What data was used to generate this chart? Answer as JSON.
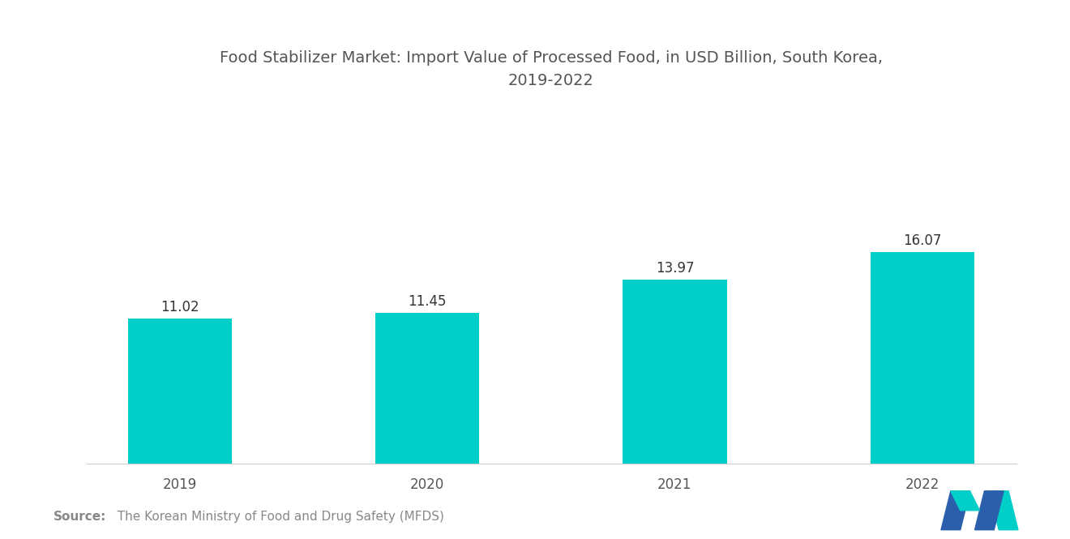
{
  "title": "Food Stabilizer Market: Import Value of Processed Food, in USD Billion, South Korea,\n2019-2022",
  "categories": [
    "2019",
    "2020",
    "2021",
    "2022"
  ],
  "values": [
    11.02,
    11.45,
    13.97,
    16.07
  ],
  "bar_color": "#00CEC9",
  "background_color": "#ffffff",
  "value_labels": [
    "11.02",
    "11.45",
    "13.97",
    "16.07"
  ],
  "source_bold": "Source:",
  "source_rest": "  The Korean Ministry of Food and Drug Safety (MFDS)",
  "ylim": [
    0,
    27
  ],
  "title_fontsize": 14,
  "label_fontsize": 12,
  "tick_fontsize": 12,
  "source_fontsize": 11,
  "bar_width": 0.42,
  "title_color": "#555555",
  "tick_color": "#555555",
  "label_color": "#333333",
  "source_color": "#888888"
}
